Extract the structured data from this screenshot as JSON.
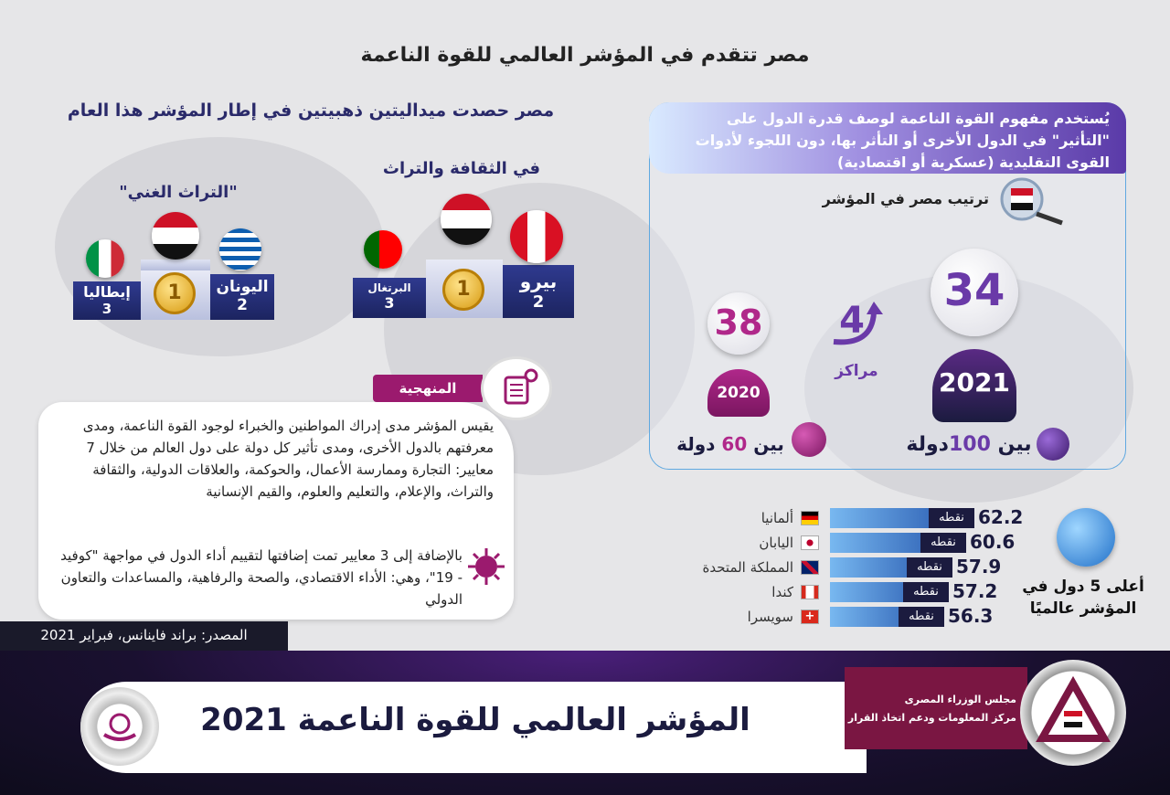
{
  "main_title": "مصر تتقدم في المؤشر العالمي للقوة الناعمة",
  "medals": {
    "title": "مصر حصدت ميداليتين ذهبيتين  في إطار المؤشر هذا العام",
    "rich_heritage": {
      "label": "\"التراث الغني\"",
      "first_number": "1",
      "second_name": "اليونان",
      "second_rank": "2",
      "third_name": "إيطاليا",
      "third_rank": "3"
    },
    "culture": {
      "label": "في الثقافة والتراث",
      "first_number": "1",
      "second_name": "بيرو",
      "second_rank": "2",
      "third_name": "البرتغال",
      "third_rank": "3"
    }
  },
  "methodology": {
    "tab_label": "المنهجية",
    "paragraph1": "يقيس المؤشر مدى إدراك المواطنين والخبراء لوجود القوة الناعمة، ومدى معرفتهم بالدول الأخرى، ومدى تأثير كل دولة على دول العالم من خلال 7 معايير: التجارة وممارسة الأعمال، والحوكمة، والعلاقات الدولية، والثقافة والتراث، والإعلام، والتعليم والعلوم، والقيم الإنسانية",
    "paragraph2": "بالإضافة إلى 3 معايير تمت إضافتها لتقييم أداء الدول في مواجهة \"كوفيد - 19\"، وهي: الأداء الاقتصادي، والصحة والرفاهية، والمساعدات والتعاون الدولي"
  },
  "source": "المصدر: براند فاينانس، فبراير 2021",
  "concept": "يُستخدم مفهوم القوة الناعمة لوصف قدرة الدول على \"التأثير\" في الدول الأخرى أو التأثر بها، دون اللجوء لأدوات القوى التقليدية (عسكرية أو اقتصادية)",
  "ranking": {
    "title": "ترتيب مصر في المؤشر",
    "rank_2021": "34",
    "year_2021": "2021",
    "among_2021_prefix": "بين",
    "among_2021_num": "100",
    "among_2021_suffix": "دولة",
    "rank_2020": "38",
    "year_2020": "2020",
    "among_2020_prefix": "بين",
    "among_2020_num": "60",
    "among_2020_suffix": "دولة",
    "improvement_num": "4",
    "improvement_label": "مراكز"
  },
  "top5": {
    "title": "أعلى 5 دول في المؤشر عالميًا",
    "unit": "نقطه",
    "countries": [
      {
        "name": "ألمانيا",
        "score": "62.2",
        "value": 62.2
      },
      {
        "name": "اليابان",
        "score": "60.6",
        "value": 60.6
      },
      {
        "name": "المملكة المتحدة",
        "score": "57.9",
        "value": 57.9
      },
      {
        "name": "كندا",
        "score": "57.2",
        "value": 57.2
      },
      {
        "name": "سويسرا",
        "score": "56.3",
        "value": 56.3
      }
    ]
  },
  "footer": {
    "title": "المؤشر العالمي للقوة الناعمة 2021",
    "cabinet_line1": "مجلس الوزراء المصرى",
    "cabinet_line2": "مركز المعلومات ودعم اتخاذ القرار"
  },
  "colors": {
    "accent_purple": "#9b1a6e",
    "navy": "#1b1b3f",
    "blue": "#1f4fa8"
  }
}
